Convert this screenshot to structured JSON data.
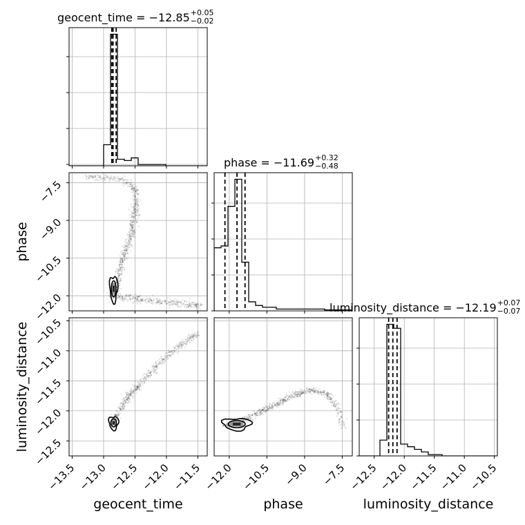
{
  "chart_data": {
    "type": "corner",
    "parameters": [
      "geocent_time",
      "phase",
      "luminosity_distance"
    ],
    "axis_labels": [
      "geocent_time",
      "phase",
      "luminosity_distance"
    ],
    "grid": true,
    "axes": {
      "geocent_time": {
        "lim": [
          -13.55,
          -11.35
        ],
        "ticks": [
          -13.5,
          -13.0,
          -12.5,
          -12.0,
          -11.5
        ],
        "tick_labels": [
          "−13.5",
          "−13.0",
          "−12.5",
          "−12.0",
          "−11.5"
        ]
      },
      "phase": {
        "lim": [
          -12.6,
          -7.1
        ],
        "ticks": [
          -12.0,
          -10.5,
          -9.0,
          -7.5
        ],
        "tick_labels": [
          "−12.0",
          "−10.5",
          "−9.0",
          "−7.5"
        ]
      },
      "luminosity_distance": {
        "lim": [
          -12.75,
          -10.45
        ],
        "ticks": [
          -12.5,
          -12.0,
          -11.5,
          -11.0,
          -10.5
        ],
        "tick_labels": [
          "−12.5",
          "−12.0",
          "−11.5",
          "−11.0",
          "−10.5"
        ]
      }
    },
    "titles": [
      {
        "param": "geocent_time",
        "prefix": "geocent_time = −12.85",
        "upper": "+0.05",
        "lower": "−0.02"
      },
      {
        "param": "phase",
        "prefix": "phase = −11.69",
        "upper": "+0.32",
        "lower": "−0.48"
      },
      {
        "param": "luminosity_distance",
        "prefix": "luminosity_distance = −12.19",
        "upper": "+0.07",
        "lower": "−0.07"
      }
    ],
    "histograms": {
      "geocent_time": {
        "edges": [
          -13.55,
          -13.44,
          -13.33,
          -13.22,
          -13.11,
          -13.0,
          -12.89,
          -12.78,
          -12.67,
          -12.56,
          -12.45,
          -12.34,
          -12.23,
          -12.12,
          -12.01,
          -11.9,
          -11.79,
          -11.68,
          -11.57,
          -11.46,
          -11.35
        ],
        "counts": [
          0,
          0,
          0,
          0,
          0,
          16,
          100,
          5,
          4,
          6,
          1,
          1,
          1,
          1,
          0,
          0,
          0,
          0,
          0,
          0
        ],
        "quantiles": [
          -12.87,
          -12.85,
          -12.8
        ]
      },
      "phase": {
        "edges": [
          -12.6,
          -12.325,
          -12.05,
          -11.775,
          -11.5,
          -11.225,
          -10.95,
          -10.675,
          -10.4,
          -10.125,
          -9.85,
          -9.575,
          -9.3,
          -9.025,
          -8.75,
          -8.475,
          -8.2,
          -7.925,
          -7.65,
          -7.375,
          -7.1
        ],
        "counts": [
          35,
          36,
          58,
          73,
          27,
          5,
          3,
          2,
          2,
          1,
          1,
          1,
          1,
          1,
          1,
          1,
          0.5,
          0.5,
          0.5,
          0.5
        ],
        "quantiles": [
          -12.17,
          -11.69,
          -11.37
        ]
      },
      "luminosity_distance": {
        "edges": [
          -12.75,
          -12.635,
          -12.52,
          -12.405,
          -12.29,
          -12.175,
          -12.06,
          -11.945,
          -11.83,
          -11.715,
          -11.6,
          -11.485,
          -11.37,
          -11.255,
          -11.14,
          -11.025,
          -10.91,
          -10.795,
          -10.68,
          -10.565,
          -10.45
        ],
        "counts": [
          0,
          0,
          0,
          12,
          100,
          97,
          9,
          7,
          5,
          3,
          1,
          1,
          0,
          0,
          0,
          0,
          0,
          0,
          0,
          0
        ],
        "quantiles": [
          -12.26,
          -12.19,
          -12.12
        ]
      }
    },
    "density_curves": {
      "phase_vs_geocent_time": [
        [
          -12.8,
          -11.9
        ],
        [
          -12.75,
          -11.0
        ],
        [
          -12.65,
          -10.2
        ],
        [
          -12.55,
          -9.5
        ],
        [
          -12.5,
          -8.8
        ],
        [
          -12.48,
          -8.1
        ],
        [
          -12.5,
          -7.8
        ],
        [
          -12.55,
          -7.6
        ],
        [
          -12.65,
          -7.45
        ],
        [
          -12.8,
          -7.35
        ],
        [
          -13.0,
          -7.3
        ],
        [
          -13.3,
          -7.25
        ]
      ],
      "phase_vs_geocent_time_branch": [
        [
          -12.9,
          -12.0
        ],
        [
          -12.6,
          -12.1
        ],
        [
          -12.3,
          -12.2
        ],
        [
          -12.0,
          -12.25
        ],
        [
          -11.7,
          -12.32
        ],
        [
          -11.45,
          -12.4
        ]
      ],
      "luminosity_distance_vs_geocent_time": [
        [
          -12.85,
          -12.2
        ],
        [
          -12.75,
          -12.0
        ],
        [
          -12.6,
          -11.75
        ],
        [
          -12.4,
          -11.55
        ],
        [
          -12.2,
          -11.3
        ],
        [
          -11.95,
          -11.05
        ],
        [
          -11.7,
          -10.85
        ],
        [
          -11.5,
          -10.7
        ]
      ],
      "luminosity_distance_vs_phase": [
        [
          -12.2,
          -12.25
        ],
        [
          -11.6,
          -12.2
        ],
        [
          -10.9,
          -12.05
        ],
        [
          -10.2,
          -11.9
        ],
        [
          -9.5,
          -11.75
        ],
        [
          -8.8,
          -11.65
        ],
        [
          -8.1,
          -11.72
        ],
        [
          -7.7,
          -11.95
        ],
        [
          -7.45,
          -12.3
        ]
      ]
    }
  }
}
